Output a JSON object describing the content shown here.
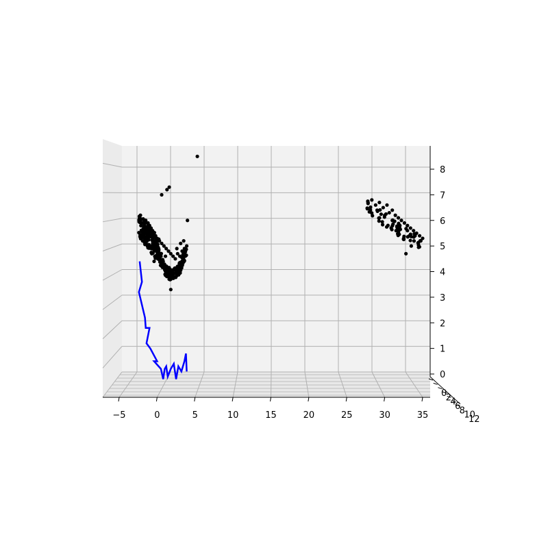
{
  "chart_data": {
    "type": "scatter",
    "projection": "3d",
    "title": "",
    "xlabel": "",
    "ylabel": "",
    "zlabel": "",
    "grid": true,
    "pane_color": "#f2f2f2",
    "grid_color": "#b0b0b0",
    "x_ticks": [
      "−5",
      "0",
      "5",
      "10",
      "15",
      "20",
      "25",
      "30",
      "35"
    ],
    "x_tick_values": [
      -5,
      0,
      5,
      10,
      15,
      20,
      25,
      30,
      35
    ],
    "z_ticks": [
      "0",
      "1",
      "2",
      "3",
      "4",
      "5",
      "6",
      "7",
      "8"
    ],
    "z_tick_values": [
      0,
      1,
      2,
      3,
      4,
      5,
      6,
      7,
      8
    ],
    "y_ticks": [
      "0",
      "2",
      "4",
      "6",
      "8",
      "10",
      "12"
    ],
    "y_tick_values": [
      0,
      2,
      4,
      6,
      8,
      10,
      12
    ],
    "xlim": [
      -7,
      36
    ],
    "zlim": [
      0,
      8.7
    ],
    "ylim": [
      0,
      12
    ],
    "series": [
      {
        "kind": "points",
        "color": "#000000",
        "clusters": [
          {
            "x": [
              -2.3,
              0.2
            ],
            "z": [
              4.4,
              6.3
            ],
            "points": [
              [
                -2.3,
                6.1
              ],
              [
                -2.2,
                6.2
              ],
              [
                -1.8,
                5.9
              ],
              [
                -1.5,
                6.0
              ],
              [
                -1.2,
                5.9
              ],
              [
                -1.0,
                5.8
              ],
              [
                -0.8,
                5.7
              ],
              [
                -0.6,
                5.6
              ],
              [
                -0.4,
                5.5
              ],
              [
                -0.2,
                5.4
              ],
              [
                0.0,
                5.3
              ],
              [
                0.2,
                5.2
              ],
              [
                -1.5,
                5.7
              ],
              [
                -1.1,
                5.6
              ],
              [
                -0.9,
                5.4
              ],
              [
                -0.6,
                5.3
              ],
              [
                -0.3,
                5.2
              ],
              [
                -0.1,
                5.1
              ],
              [
                -0.5,
                5.0
              ],
              [
                -0.2,
                4.9
              ],
              [
                0.0,
                4.8
              ],
              [
                -0.7,
                4.7
              ],
              [
                -0.3,
                4.6
              ],
              [
                0.1,
                4.5
              ],
              [
                -0.4,
                4.4
              ],
              [
                -1.8,
                5.6
              ],
              [
                -1.3,
                5.4
              ]
            ]
          },
          {
            "x": [
              0.0,
              4.0
            ],
            "z": [
              3.6,
              5.4
            ],
            "points": [
              [
                0.3,
                5.2
              ],
              [
                0.6,
                5.1
              ],
              [
                0.9,
                5.0
              ],
              [
                1.2,
                4.9
              ],
              [
                1.5,
                4.8
              ],
              [
                1.8,
                4.7
              ],
              [
                2.1,
                4.6
              ],
              [
                2.4,
                4.5
              ],
              [
                2.7,
                4.7
              ],
              [
                3.0,
                4.6
              ],
              [
                3.3,
                4.8
              ],
              [
                3.6,
                4.9
              ],
              [
                3.9,
                5.0
              ],
              [
                0.5,
                4.6
              ],
              [
                0.8,
                4.4
              ],
              [
                1.0,
                4.2
              ],
              [
                1.2,
                4.0
              ],
              [
                1.4,
                3.9
              ],
              [
                1.6,
                3.8
              ],
              [
                1.8,
                3.7
              ],
              [
                2.0,
                3.9
              ],
              [
                2.3,
                4.1
              ],
              [
                0.2,
                4.9
              ],
              [
                1.1,
                4.6
              ],
              [
                2.6,
                4.9
              ],
              [
                3.1,
                5.1
              ],
              [
                3.5,
                5.2
              ]
            ]
          },
          {
            "x": [
              0.5,
              4.0
            ],
            "z": [
              3.2,
              8.2
            ],
            "points": [
              [
                5.3,
                8.5
              ],
              [
                1.3,
                7.2
              ],
              [
                1.6,
                7.3
              ],
              [
                0.6,
                7.0
              ],
              [
                4.0,
                6.0
              ],
              [
                1.8,
                3.3
              ]
            ]
          },
          {
            "x": [
              27.5,
              35.0
            ],
            "z": [
              4.6,
              6.8
            ],
            "points": [
              [
                27.8,
                6.7
              ],
              [
                28.3,
                6.8
              ],
              [
                28.8,
                6.6
              ],
              [
                29.3,
                6.7
              ],
              [
                29.8,
                6.5
              ],
              [
                30.3,
                6.6
              ],
              [
                30.6,
                6.3
              ],
              [
                31.0,
                6.4
              ],
              [
                31.4,
                6.2
              ],
              [
                31.8,
                6.1
              ],
              [
                32.2,
                6.0
              ],
              [
                32.6,
                5.9
              ],
              [
                33.0,
                5.8
              ],
              [
                33.4,
                5.7
              ],
              [
                33.8,
                5.6
              ],
              [
                34.2,
                5.5
              ],
              [
                34.6,
                5.4
              ],
              [
                35.0,
                5.3
              ],
              [
                29.0,
                6.4
              ],
              [
                30.0,
                6.2
              ],
              [
                31.0,
                6.0
              ],
              [
                32.0,
                5.8
              ],
              [
                33.0,
                5.6
              ],
              [
                34.0,
                5.4
              ],
              [
                31.5,
                5.6
              ],
              [
                32.5,
                5.3
              ],
              [
                33.5,
                5.0
              ],
              [
                32.8,
                4.7
              ]
            ]
          }
        ]
      },
      {
        "kind": "line",
        "color": "#0000ff",
        "points": [
          [
            -2.3,
            4.4
          ],
          [
            -2.0,
            3.6
          ],
          [
            -2.4,
            3.2
          ],
          [
            -1.6,
            2.2
          ],
          [
            -1.5,
            1.8
          ],
          [
            -1.0,
            1.8
          ],
          [
            -1.4,
            1.2
          ],
          [
            -0.9,
            1.0
          ],
          [
            0.0,
            0.5
          ],
          [
            -0.4,
            0.5
          ],
          [
            0.5,
            0.2
          ],
          [
            0.8,
            -0.2
          ],
          [
            1.0,
            0.2
          ],
          [
            1.2,
            0.3
          ],
          [
            1.4,
            -0.1
          ],
          [
            1.8,
            0.2
          ],
          [
            2.2,
            0.4
          ],
          [
            2.5,
            -0.2
          ],
          [
            2.8,
            0.3
          ],
          [
            3.2,
            0.1
          ],
          [
            3.6,
            0.5
          ],
          [
            3.8,
            0.8
          ],
          [
            3.9,
            0.1
          ]
        ]
      }
    ]
  }
}
